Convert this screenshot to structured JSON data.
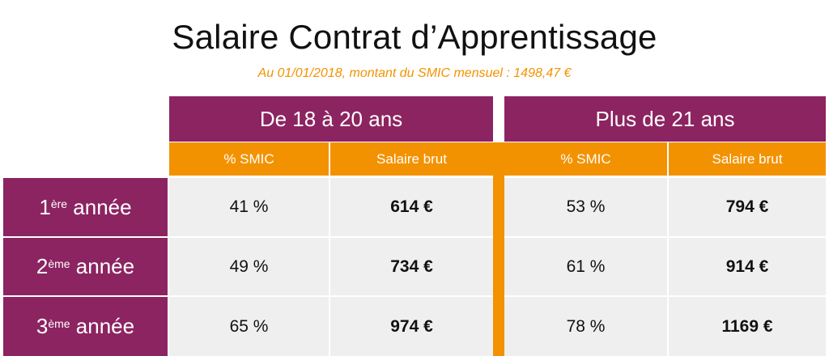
{
  "title": "Salaire Contrat d’Apprentissage",
  "subtitle": "Au 01/01/2018, montant du SMIC mensuel : 1498,47 €",
  "groups": [
    {
      "label": "De 18 à 20 ans",
      "col_pct": "% SMIC",
      "col_salary": "Salaire brut"
    },
    {
      "label": "Plus de 21 ans",
      "col_pct": "% SMIC",
      "col_salary": "Salaire brut"
    }
  ],
  "rows": [
    {
      "num": "1",
      "sup": "ère",
      "suffix": " année",
      "pct1": "41 %",
      "sal1": "614 €",
      "pct2": "53 %",
      "sal2": "794 €"
    },
    {
      "num": "2",
      "sup": "ème",
      "suffix": " année",
      "pct1": "49 %",
      "sal1": "734 €",
      "pct2": "61 %",
      "sal2": "914 €"
    },
    {
      "num": "3",
      "sup": "ème",
      "suffix": " année",
      "pct1": "65 %",
      "sal1": "974 €",
      "pct2": "78 %",
      "sal2": "1169 €"
    }
  ],
  "colors": {
    "purple": "#8c2461",
    "orange": "#f39200",
    "cell_bg": "#efefef",
    "subtitle": "#f39200"
  }
}
